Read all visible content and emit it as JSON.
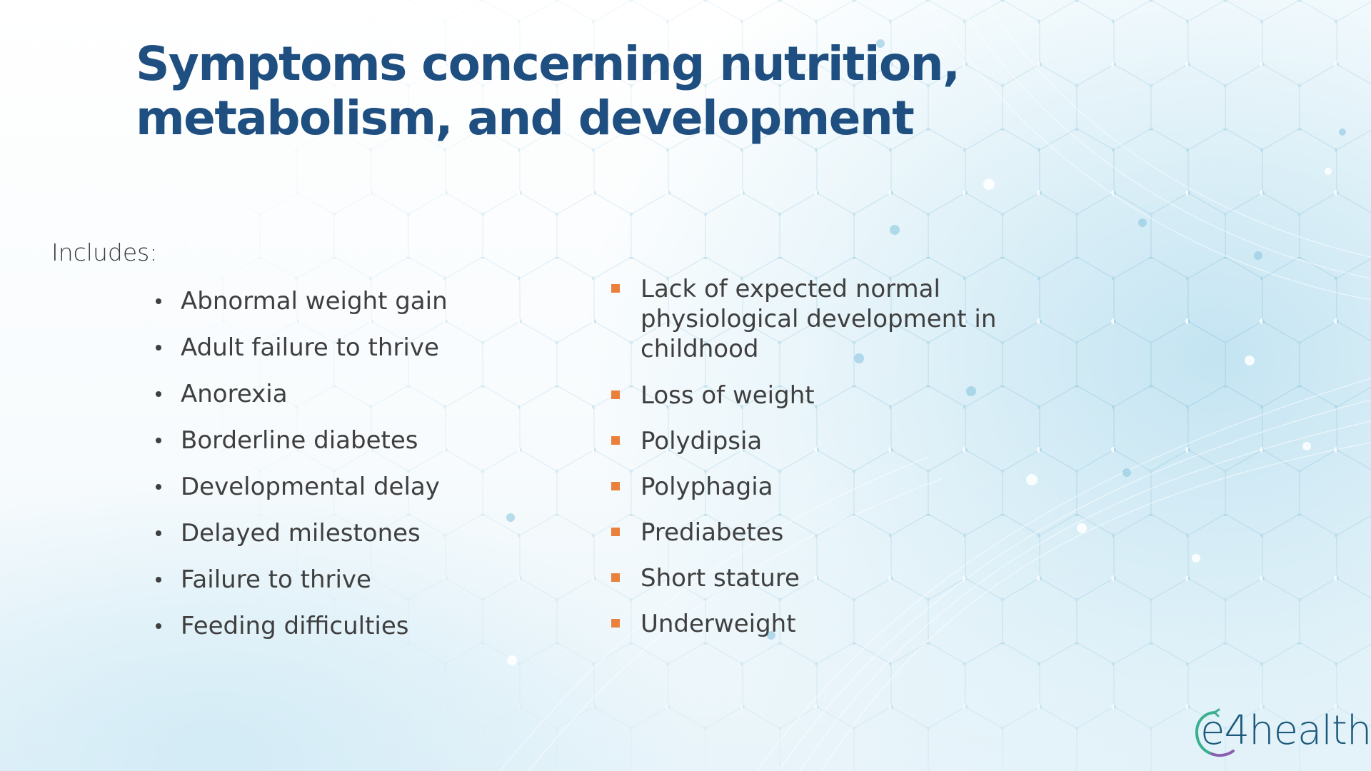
{
  "slide": {
    "title": "Symptoms concerning nutrition, metabolism, and development",
    "intro": "Includes:",
    "left_items": [
      "Abnormal weight gain",
      "Adult failure to thrive",
      "Anorexia",
      "Borderline diabetes",
      "Developmental delay",
      "Delayed milestones",
      "Failure to thrive",
      "Feeding difficulties"
    ],
    "right_items": [
      "Lack of expected normal physiological development in childhood",
      "Loss of weight",
      "Polydipsia",
      "Polyphagia",
      "Prediabetes",
      "Short stature",
      "Underweight"
    ]
  },
  "logo": {
    "text": "e4health"
  },
  "colors": {
    "title": "#1e4f80",
    "body_text": "#3f3f3f",
    "right_bullet": "#e9813c",
    "logo_text": "#1c5a7c",
    "logo_swirl_green": "#3bb08f",
    "logo_swirl_purple": "#8a5fb0"
  },
  "icons": {
    "left_bullet": "round-bullet-icon",
    "right_bullet": "square-bullet-icon",
    "background": "hexagon-network-pattern"
  }
}
